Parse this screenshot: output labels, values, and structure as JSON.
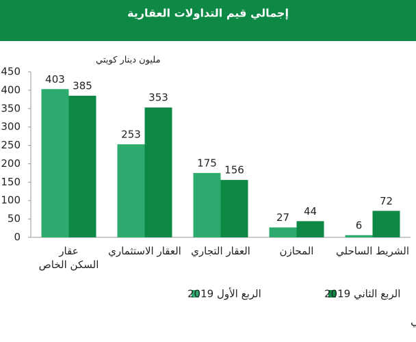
{
  "chart_data": {
    "type": "bar",
    "title": "إجمالي قيم التداولات العقارية",
    "y_label": "مليون دينار كويتي",
    "categories": [
      "عقار\nالسكن الخاص",
      "العقار الاستثماري",
      "العقار التجاري",
      "المحازن",
      "الشريط الساحلي"
    ],
    "series": [
      {
        "name": "الربع الأول 2019",
        "color": "#2daa6e",
        "values": [
          403,
          253,
          175,
          27,
          6
        ]
      },
      {
        "name": "الربع الثاني 2019",
        "color": "#0d8945",
        "values": [
          385,
          353,
          156,
          44,
          72
        ]
      }
    ],
    "ylim": [
      0,
      450
    ],
    "yticks": [
      0,
      50,
      100,
      150,
      200,
      250,
      300,
      350,
      400,
      450
    ],
    "grid": false,
    "source": "المصدر : وزارة العدل– بيت التمويل الكويتي"
  }
}
